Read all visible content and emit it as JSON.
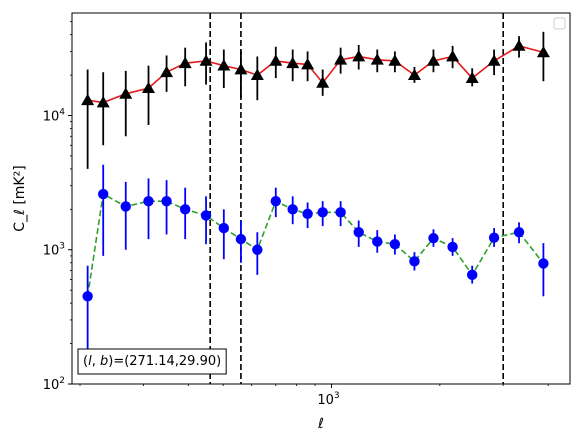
{
  "chart_data": {
    "type": "scatter",
    "title": "",
    "xlabel": "ℓ",
    "ylabel": "C_ℓ  [mK²]",
    "xscale": "log",
    "yscale": "log",
    "xlim": [
      190,
      4600
    ],
    "ylim": [
      100,
      58000
    ],
    "grid": false,
    "legend": "top-right, empty box",
    "x_tick_labels": [
      {
        "value": 1000,
        "base": "10",
        "exp": "3"
      }
    ],
    "y_tick_labels": [
      {
        "value": 100,
        "base": "10",
        "exp": "2"
      },
      {
        "value": 1000,
        "base": "10",
        "exp": "3"
      },
      {
        "value": 10000,
        "base": "10",
        "exp": "4"
      }
    ],
    "annotation": {
      "text": "(l, b)=(271.14,29.90)",
      "position": "bottom-left",
      "lb": "(l, b)",
      "coords": "=(271.14,29.90)"
    },
    "vertical_lines": [
      {
        "x": 460,
        "style": "dashed",
        "color": "#000000"
      },
      {
        "x": 560,
        "style": "dashed",
        "color": "#000000"
      },
      {
        "x": 3000,
        "style": "dashed",
        "color": "#000000"
      }
    ],
    "series": [
      {
        "marker": "triangle",
        "line_style": "solid",
        "line_color": "#e31a1c",
        "marker_color": "#000000",
        "points": [
          {
            "x": 210,
            "y": 13000,
            "ylo": 4000,
            "yhi": 22000
          },
          {
            "x": 232,
            "y": 12500,
            "ylo": 6000,
            "yhi": 21000
          },
          {
            "x": 268,
            "y": 14500,
            "ylo": 7000,
            "yhi": 21500
          },
          {
            "x": 310,
            "y": 16000,
            "ylo": 8500,
            "yhi": 23500
          },
          {
            "x": 348,
            "y": 21000,
            "ylo": 15000,
            "yhi": 28000
          },
          {
            "x": 392,
            "y": 24500,
            "ylo": 16500,
            "yhi": 32000
          },
          {
            "x": 448,
            "y": 25500,
            "ylo": 17000,
            "yhi": 35000
          },
          {
            "x": 502,
            "y": 23500,
            "ylo": 16000,
            "yhi": 31000
          },
          {
            "x": 560,
            "y": 22000,
            "ylo": 13500,
            "yhi": 30500
          },
          {
            "x": 622,
            "y": 20000,
            "ylo": 13000,
            "yhi": 27500
          },
          {
            "x": 700,
            "y": 25500,
            "ylo": 19000,
            "yhi": 32500
          },
          {
            "x": 780,
            "y": 24500,
            "ylo": 18000,
            "yhi": 31000
          },
          {
            "x": 858,
            "y": 24000,
            "ylo": 18000,
            "yhi": 30000
          },
          {
            "x": 945,
            "y": 17500,
            "ylo": 14000,
            "yhi": 22000
          },
          {
            "x": 1060,
            "y": 26000,
            "ylo": 20500,
            "yhi": 32000
          },
          {
            "x": 1190,
            "y": 27500,
            "ylo": 22000,
            "yhi": 33500
          },
          {
            "x": 1340,
            "y": 26000,
            "ylo": 21000,
            "yhi": 31000
          },
          {
            "x": 1500,
            "y": 25500,
            "ylo": 21000,
            "yhi": 30000
          },
          {
            "x": 1700,
            "y": 20000,
            "ylo": 17500,
            "yhi": 23000
          },
          {
            "x": 1920,
            "y": 25500,
            "ylo": 21000,
            "yhi": 31000
          },
          {
            "x": 2170,
            "y": 27500,
            "ylo": 22500,
            "yhi": 33000
          },
          {
            "x": 2460,
            "y": 19000,
            "ylo": 16500,
            "yhi": 22500
          },
          {
            "x": 2830,
            "y": 25500,
            "ylo": 20000,
            "yhi": 31000
          },
          {
            "x": 3320,
            "y": 33000,
            "ylo": 27000,
            "yhi": 39000
          },
          {
            "x": 3880,
            "y": 29500,
            "ylo": 18000,
            "yhi": 42000
          }
        ]
      },
      {
        "marker": "circle",
        "line_style": "dashed",
        "line_color": "#2ca02c",
        "marker_color": "#0000ff",
        "points": [
          {
            "x": 210,
            "y": 450,
            "ylo": 130,
            "yhi": 760
          },
          {
            "x": 232,
            "y": 2600,
            "ylo": 900,
            "yhi": 4300
          },
          {
            "x": 268,
            "y": 2100,
            "ylo": 1000,
            "yhi": 3200
          },
          {
            "x": 310,
            "y": 2300,
            "ylo": 1200,
            "yhi": 3400
          },
          {
            "x": 348,
            "y": 2300,
            "ylo": 1300,
            "yhi": 3300
          },
          {
            "x": 392,
            "y": 2000,
            "ylo": 1200,
            "yhi": 2900
          },
          {
            "x": 448,
            "y": 1800,
            "ylo": 1100,
            "yhi": 2500
          },
          {
            "x": 502,
            "y": 1450,
            "ylo": 850,
            "yhi": 2000
          },
          {
            "x": 560,
            "y": 1200,
            "ylo": 800,
            "yhi": 1650
          },
          {
            "x": 622,
            "y": 1000,
            "ylo": 650,
            "yhi": 1350
          },
          {
            "x": 700,
            "y": 2300,
            "ylo": 1750,
            "yhi": 2900
          },
          {
            "x": 780,
            "y": 2000,
            "ylo": 1550,
            "yhi": 2500
          },
          {
            "x": 858,
            "y": 1850,
            "ylo": 1450,
            "yhi": 2250
          },
          {
            "x": 945,
            "y": 1900,
            "ylo": 1500,
            "yhi": 2300
          },
          {
            "x": 1060,
            "y": 1900,
            "ylo": 1500,
            "yhi": 2300
          },
          {
            "x": 1190,
            "y": 1350,
            "ylo": 1050,
            "yhi": 1650
          },
          {
            "x": 1340,
            "y": 1150,
            "ylo": 950,
            "yhi": 1400
          },
          {
            "x": 1500,
            "y": 1100,
            "ylo": 920,
            "yhi": 1300
          },
          {
            "x": 1700,
            "y": 820,
            "ylo": 700,
            "yhi": 960
          },
          {
            "x": 1920,
            "y": 1220,
            "ylo": 1050,
            "yhi": 1420
          },
          {
            "x": 2170,
            "y": 1050,
            "ylo": 900,
            "yhi": 1220
          },
          {
            "x": 2460,
            "y": 650,
            "ylo": 560,
            "yhi": 760
          },
          {
            "x": 2830,
            "y": 1230,
            "ylo": 1050,
            "yhi": 1450
          },
          {
            "x": 3320,
            "y": 1350,
            "ylo": 1120,
            "yhi": 1600
          },
          {
            "x": 3880,
            "y": 790,
            "ylo": 450,
            "yhi": 1120
          }
        ]
      }
    ]
  }
}
